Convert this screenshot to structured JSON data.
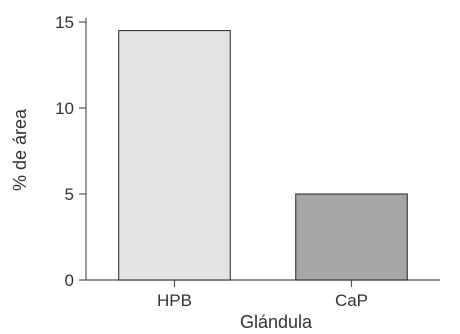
{
  "chart_data": {
    "type": "bar",
    "title": "",
    "xlabel": "Glándula",
    "ylabel": "% de área",
    "categories": [
      "HPB",
      "CaP"
    ],
    "values": [
      14.5,
      5.0
    ],
    "ylim": [
      0,
      15
    ],
    "yticks": [
      0,
      5,
      10,
      15
    ],
    "ytick_labels": [
      "0",
      "5",
      "10",
      "15"
    ],
    "grid": false,
    "legend": "none",
    "colors": {
      "bars": [
        "#e3e3e3",
        "#a6a6a6"
      ],
      "bar_edge": "#222222",
      "axis": "#555555"
    }
  }
}
